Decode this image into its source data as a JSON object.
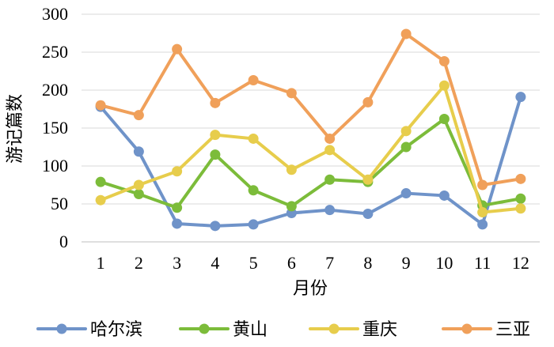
{
  "chart_data": {
    "type": "line",
    "title": "",
    "xlabel": "月份",
    "ylabel": "游记篇数",
    "ylim": [
      0,
      300
    ],
    "yticks": [
      0,
      50,
      100,
      150,
      200,
      250,
      300
    ],
    "grid": true,
    "legend_position": "bottom",
    "categories": [
      "1",
      "2",
      "3",
      "4",
      "5",
      "6",
      "7",
      "8",
      "9",
      "10",
      "11",
      "12"
    ],
    "series": [
      {
        "name": "哈尔滨",
        "color": "#6f93c9",
        "values": [
          178,
          119,
          24,
          21,
          23,
          38,
          42,
          37,
          64,
          61,
          23,
          191
        ]
      },
      {
        "name": "黄山",
        "color": "#7cbc3a",
        "values": [
          79,
          63,
          45,
          115,
          68,
          47,
          82,
          79,
          125,
          162,
          48,
          57
        ]
      },
      {
        "name": "重庆",
        "color": "#e7cd4c",
        "values": [
          55,
          75,
          93,
          141,
          136,
          95,
          121,
          82,
          146,
          206,
          39,
          44
        ]
      },
      {
        "name": "三亚",
        "color": "#f0a05a",
        "values": [
          180,
          167,
          254,
          183,
          213,
          196,
          136,
          184,
          274,
          238,
          75,
          83
        ]
      }
    ]
  }
}
